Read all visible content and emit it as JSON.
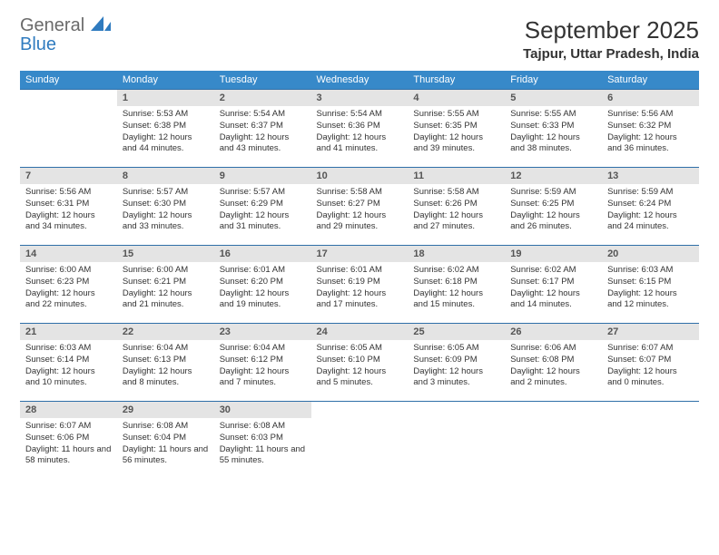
{
  "brand": {
    "line1": "General",
    "line2": "Blue",
    "color_general": "#6a6a6a",
    "color_blue": "#2f7bbf"
  },
  "title": "September 2025",
  "location": "Tajpur, Uttar Pradesh, India",
  "header_bg": "#3789c9",
  "header_fg": "#ffffff",
  "daynum_bg": "#e4e4e4",
  "row_border": "#2f6fa8",
  "weekdays": [
    "Sunday",
    "Monday",
    "Tuesday",
    "Wednesday",
    "Thursday",
    "Friday",
    "Saturday"
  ],
  "weeks": [
    [
      null,
      {
        "n": "1",
        "sr": "5:53 AM",
        "ss": "6:38 PM",
        "dl": "12 hours and 44 minutes."
      },
      {
        "n": "2",
        "sr": "5:54 AM",
        "ss": "6:37 PM",
        "dl": "12 hours and 43 minutes."
      },
      {
        "n": "3",
        "sr": "5:54 AM",
        "ss": "6:36 PM",
        "dl": "12 hours and 41 minutes."
      },
      {
        "n": "4",
        "sr": "5:55 AM",
        "ss": "6:35 PM",
        "dl": "12 hours and 39 minutes."
      },
      {
        "n": "5",
        "sr": "5:55 AM",
        "ss": "6:33 PM",
        "dl": "12 hours and 38 minutes."
      },
      {
        "n": "6",
        "sr": "5:56 AM",
        "ss": "6:32 PM",
        "dl": "12 hours and 36 minutes."
      }
    ],
    [
      {
        "n": "7",
        "sr": "5:56 AM",
        "ss": "6:31 PM",
        "dl": "12 hours and 34 minutes."
      },
      {
        "n": "8",
        "sr": "5:57 AM",
        "ss": "6:30 PM",
        "dl": "12 hours and 33 minutes."
      },
      {
        "n": "9",
        "sr": "5:57 AM",
        "ss": "6:29 PM",
        "dl": "12 hours and 31 minutes."
      },
      {
        "n": "10",
        "sr": "5:58 AM",
        "ss": "6:27 PM",
        "dl": "12 hours and 29 minutes."
      },
      {
        "n": "11",
        "sr": "5:58 AM",
        "ss": "6:26 PM",
        "dl": "12 hours and 27 minutes."
      },
      {
        "n": "12",
        "sr": "5:59 AM",
        "ss": "6:25 PM",
        "dl": "12 hours and 26 minutes."
      },
      {
        "n": "13",
        "sr": "5:59 AM",
        "ss": "6:24 PM",
        "dl": "12 hours and 24 minutes."
      }
    ],
    [
      {
        "n": "14",
        "sr": "6:00 AM",
        "ss": "6:23 PM",
        "dl": "12 hours and 22 minutes."
      },
      {
        "n": "15",
        "sr": "6:00 AM",
        "ss": "6:21 PM",
        "dl": "12 hours and 21 minutes."
      },
      {
        "n": "16",
        "sr": "6:01 AM",
        "ss": "6:20 PM",
        "dl": "12 hours and 19 minutes."
      },
      {
        "n": "17",
        "sr": "6:01 AM",
        "ss": "6:19 PM",
        "dl": "12 hours and 17 minutes."
      },
      {
        "n": "18",
        "sr": "6:02 AM",
        "ss": "6:18 PM",
        "dl": "12 hours and 15 minutes."
      },
      {
        "n": "19",
        "sr": "6:02 AM",
        "ss": "6:17 PM",
        "dl": "12 hours and 14 minutes."
      },
      {
        "n": "20",
        "sr": "6:03 AM",
        "ss": "6:15 PM",
        "dl": "12 hours and 12 minutes."
      }
    ],
    [
      {
        "n": "21",
        "sr": "6:03 AM",
        "ss": "6:14 PM",
        "dl": "12 hours and 10 minutes."
      },
      {
        "n": "22",
        "sr": "6:04 AM",
        "ss": "6:13 PM",
        "dl": "12 hours and 8 minutes."
      },
      {
        "n": "23",
        "sr": "6:04 AM",
        "ss": "6:12 PM",
        "dl": "12 hours and 7 minutes."
      },
      {
        "n": "24",
        "sr": "6:05 AM",
        "ss": "6:10 PM",
        "dl": "12 hours and 5 minutes."
      },
      {
        "n": "25",
        "sr": "6:05 AM",
        "ss": "6:09 PM",
        "dl": "12 hours and 3 minutes."
      },
      {
        "n": "26",
        "sr": "6:06 AM",
        "ss": "6:08 PM",
        "dl": "12 hours and 2 minutes."
      },
      {
        "n": "27",
        "sr": "6:07 AM",
        "ss": "6:07 PM",
        "dl": "12 hours and 0 minutes."
      }
    ],
    [
      {
        "n": "28",
        "sr": "6:07 AM",
        "ss": "6:06 PM",
        "dl": "11 hours and 58 minutes."
      },
      {
        "n": "29",
        "sr": "6:08 AM",
        "ss": "6:04 PM",
        "dl": "11 hours and 56 minutes."
      },
      {
        "n": "30",
        "sr": "6:08 AM",
        "ss": "6:03 PM",
        "dl": "11 hours and 55 minutes."
      },
      null,
      null,
      null,
      null
    ]
  ],
  "labels": {
    "sunrise": "Sunrise:",
    "sunset": "Sunset:",
    "daylight": "Daylight:"
  }
}
